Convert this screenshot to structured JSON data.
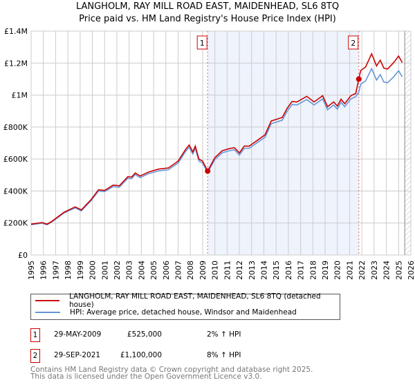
{
  "title": "LANGHOLM, RAY MILL ROAD EAST, MAIDENHEAD, SL6 8TQ",
  "subtitle": "Price paid vs. HM Land Registry's House Price Index (HPI)",
  "chart_data": {
    "type": "line",
    "ylim": [
      0,
      1400000
    ],
    "xlim": [
      1995,
      2026
    ],
    "y_ticks": [
      {
        "v": 0,
        "label": "£0"
      },
      {
        "v": 200000,
        "label": "£200K"
      },
      {
        "v": 400000,
        "label": "£400K"
      },
      {
        "v": 600000,
        "label": "£600K"
      },
      {
        "v": 800000,
        "label": "£800K"
      },
      {
        "v": 1000000,
        "label": "£1M"
      },
      {
        "v": 1200000,
        "label": "£1.2M"
      },
      {
        "v": 1400000,
        "label": "£1.4M"
      }
    ],
    "x_ticks": [
      "1995",
      "1996",
      "1997",
      "1998",
      "1999",
      "2000",
      "2001",
      "2002",
      "2003",
      "2004",
      "2005",
      "2006",
      "2007",
      "2008",
      "2009",
      "2010",
      "2011",
      "2012",
      "2013",
      "2014",
      "2015",
      "2016",
      "2017",
      "2018",
      "2019",
      "2020",
      "2021",
      "2022",
      "2023",
      "2024",
      "2025",
      "2026"
    ],
    "grid": true,
    "shaded_range": [
      2009.41,
      2021.75
    ],
    "forecast_from": 2025.5,
    "series": [
      {
        "name": "LANGHOLM, RAY MILL ROAD EAST, MAIDENHEAD, SL6 8TQ (detached house)",
        "color": "#cc0000",
        "x": [
          1995,
          1995.9,
          1996.3,
          1996.7,
          1997.7,
          1998.6,
          1999.1,
          1999.9,
          2000.5,
          2001,
          2001.7,
          2002.2,
          2002.9,
          2003.2,
          2003.5,
          2003.9,
          2004.6,
          2005.4,
          2006.2,
          2007,
          2007.6,
          2007.9,
          2008.2,
          2008.4,
          2008.7,
          2009,
          2009.41,
          2010,
          2010.6,
          2011.2,
          2011.6,
          2012,
          2012.4,
          2012.8,
          2013.6,
          2014.1,
          2014.6,
          2015.5,
          2015.9,
          2016.3,
          2016.7,
          2017.5,
          2018.1,
          2018.8,
          2019.2,
          2019.7,
          2020,
          2020.3,
          2020.6,
          2021.1,
          2021.5,
          2021.75,
          2021.9,
          2022.3,
          2022.8,
          2023.2,
          2023.5,
          2023.8,
          2024.1,
          2024.6,
          2025,
          2025.3
        ],
        "y": [
          193000,
          203000,
          193000,
          211000,
          268000,
          301000,
          282000,
          347000,
          408000,
          404000,
          437000,
          433000,
          490000,
          487000,
          513000,
          494000,
          519000,
          537000,
          544000,
          587000,
          659000,
          688000,
          645000,
          681000,
          599000,
          587000,
          525000,
          609000,
          652000,
          666000,
          671000,
          638000,
          681000,
          681000,
          724000,
          752000,
          838000,
          860000,
          917000,
          960000,
          957000,
          992000,
          957000,
          996000,
          927000,
          957000,
          931000,
          974000,
          946000,
          996000,
          1010000,
          1100000,
          1153000,
          1175000,
          1258000,
          1182000,
          1218000,
          1168000,
          1163000,
          1203000,
          1244000,
          1203000
        ]
      },
      {
        "name": "HPI: Average price, detached house, Windsor and Maidenhead",
        "color": "#6495d8",
        "x": [
          1995,
          1995.9,
          1996.3,
          1996.7,
          1997.7,
          1998.6,
          1999.1,
          1999.9,
          2000.5,
          2001,
          2001.7,
          2002.2,
          2002.9,
          2003.2,
          2003.5,
          2003.9,
          2004.6,
          2005.4,
          2006.2,
          2007,
          2007.6,
          2007.9,
          2008.2,
          2008.4,
          2008.7,
          2009,
          2009.41,
          2010,
          2010.6,
          2011.2,
          2011.6,
          2012,
          2012.4,
          2012.8,
          2013.6,
          2014.1,
          2014.6,
          2015.5,
          2015.9,
          2016.3,
          2016.7,
          2017.5,
          2018.1,
          2018.8,
          2019.2,
          2019.7,
          2020,
          2020.3,
          2020.6,
          2021.1,
          2021.5,
          2021.75,
          2021.9,
          2022.3,
          2022.8,
          2023.2,
          2023.5,
          2023.8,
          2024.1,
          2024.6,
          2025,
          2025.3
        ],
        "y": [
          189000,
          199000,
          189000,
          207000,
          263000,
          295000,
          276000,
          340000,
          400000,
          396000,
          428000,
          424000,
          480000,
          477000,
          503000,
          484000,
          509000,
          526000,
          533000,
          575000,
          646000,
          674000,
          632000,
          667000,
          587000,
          575000,
          515000,
          597000,
          639000,
          653000,
          658000,
          625000,
          667000,
          667000,
          710000,
          737000,
          821000,
          843000,
          899000,
          941000,
          938000,
          972000,
          938000,
          976000,
          908000,
          938000,
          912000,
          955000,
          927000,
          976000,
          990000,
          1019000,
          1068000,
          1088000,
          1165000,
          1094000,
          1128000,
          1081000,
          1077000,
          1114000,
          1152000,
          1114000
        ]
      }
    ],
    "sales": [
      {
        "label": "1",
        "x": 2009.41,
        "y": 525000
      },
      {
        "label": "2",
        "x": 2021.75,
        "y": 1100000
      }
    ]
  },
  "legend": {
    "red": "LANGHOLM, RAY MILL ROAD EAST, MAIDENHEAD, SL6 8TQ (detached house)",
    "blue": "HPI: Average price, detached house, Windsor and Maidenhead"
  },
  "transactions": [
    {
      "num": "1",
      "date": "29-MAY-2009",
      "price": "£525,000",
      "hpi": "2% ↑ HPI"
    },
    {
      "num": "2",
      "date": "29-SEP-2021",
      "price": "£1,100,000",
      "hpi": "8% ↑ HPI"
    }
  ],
  "footer": [
    "Contains HM Land Registry data © Crown copyright and database right 2025.",
    "This data is licensed under the Open Government Licence v3.0."
  ]
}
